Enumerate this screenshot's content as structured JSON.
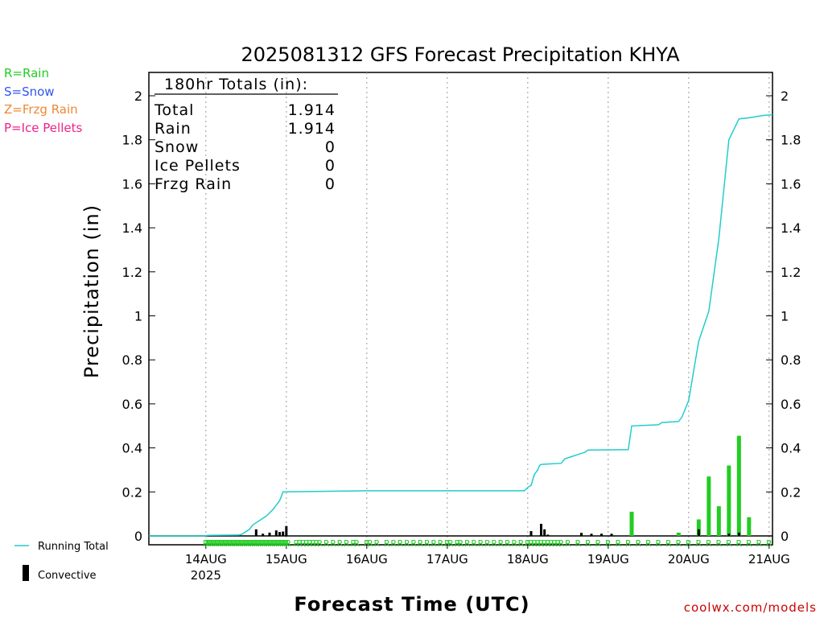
{
  "chart_data": {
    "type": "bar+line",
    "title": "2025081312 GFS Forecast Precipitation KHYA",
    "xlabel": "Forecast Time (UTC)",
    "ylabel": "Precipitation (in)",
    "ylim": [
      0,
      2.1
    ],
    "yticks": [
      "0",
      "0.2",
      "0.4",
      "0.6",
      "0.8",
      "1",
      "1.2",
      "1.4",
      "1.6",
      "1.8",
      "2"
    ],
    "x_range_hours": [
      -5,
      181
    ],
    "day_ticks": [
      {
        "label": "14AUG",
        "hour": 12
      },
      {
        "label": "15AUG",
        "hour": 36
      },
      {
        "label": "16AUG",
        "hour": 60
      },
      {
        "label": "17AUG",
        "hour": 84
      },
      {
        "label": "18AUG",
        "hour": 108
      },
      {
        "label": "19AUG",
        "hour": 132
      },
      {
        "label": "20AUG",
        "hour": 156
      },
      {
        "label": "21AUG",
        "hour": 180
      }
    ],
    "year_label": "2025",
    "totals_box": {
      "header": "180hr Totals (in):",
      "rows": [
        {
          "label": "Total",
          "value": "1.914"
        },
        {
          "label": "Rain",
          "value": "1.914"
        },
        {
          "label": "Snow",
          "value": "0"
        },
        {
          "label": "Ice Pellets",
          "value": "0"
        },
        {
          "label": "Frzg Rain",
          "value": "0"
        }
      ]
    },
    "ptype_legend": [
      {
        "text": "R=Rain",
        "color": "#22cc22"
      },
      {
        "text": "S=Snow",
        "color": "#3355ee"
      },
      {
        "text": "Z=Frzg Rain",
        "color": "#ee8833"
      },
      {
        "text": "P=Ice Pellets",
        "color": "#ee2288"
      }
    ],
    "series_legend": [
      {
        "name": "Running Total",
        "color": "#22cccc",
        "kind": "line"
      },
      {
        "name": "Convective",
        "color": "#000000",
        "kind": "bar"
      }
    ],
    "running_total": [
      [
        -5,
        0
      ],
      [
        12,
        0
      ],
      [
        12.5,
        0.003
      ],
      [
        22,
        0.004
      ],
      [
        23,
        0.01
      ],
      [
        25,
        0.03
      ],
      [
        26,
        0.05
      ],
      [
        28,
        0.07
      ],
      [
        30,
        0.09
      ],
      [
        32,
        0.12
      ],
      [
        34,
        0.16
      ],
      [
        35,
        0.2
      ],
      [
        60,
        0.205
      ],
      [
        107,
        0.205
      ],
      [
        108,
        0.22
      ],
      [
        109,
        0.23
      ],
      [
        110,
        0.28
      ],
      [
        111,
        0.3
      ],
      [
        111.5,
        0.32
      ],
      [
        112,
        0.325
      ],
      [
        118,
        0.33
      ],
      [
        119,
        0.35
      ],
      [
        121,
        0.36
      ],
      [
        123,
        0.37
      ],
      [
        125,
        0.38
      ],
      [
        126,
        0.39
      ],
      [
        138,
        0.392
      ],
      [
        139,
        0.5
      ],
      [
        147,
        0.505
      ],
      [
        148,
        0.515
      ],
      [
        153,
        0.52
      ],
      [
        154,
        0.54
      ],
      [
        156,
        0.615
      ],
      [
        159,
        0.885
      ],
      [
        162,
        1.02
      ],
      [
        165,
        1.35
      ],
      [
        168,
        1.8
      ],
      [
        171,
        1.895
      ],
      [
        174,
        1.9
      ],
      [
        178,
        1.91
      ],
      [
        181,
        1.914
      ]
    ],
    "rain_bars": [
      {
        "hour": 139,
        "value": 0.11
      },
      {
        "hour": 153,
        "value": 0.015
      },
      {
        "hour": 159,
        "value": 0.075
      },
      {
        "hour": 162,
        "value": 0.27
      },
      {
        "hour": 165,
        "value": 0.135
      },
      {
        "hour": 168,
        "value": 0.32
      },
      {
        "hour": 171,
        "value": 0.455
      },
      {
        "hour": 174,
        "value": 0.085
      }
    ],
    "convective_bars": [
      {
        "hour": 22,
        "value": 0.006
      },
      {
        "hour": 27,
        "value": 0.03
      },
      {
        "hour": 29,
        "value": 0.01
      },
      {
        "hour": 31,
        "value": 0.015
      },
      {
        "hour": 33,
        "value": 0.025
      },
      {
        "hour": 34,
        "value": 0.018
      },
      {
        "hour": 35,
        "value": 0.02
      },
      {
        "hour": 36,
        "value": 0.045
      },
      {
        "hour": 109,
        "value": 0.022
      },
      {
        "hour": 112,
        "value": 0.055
      },
      {
        "hour": 113,
        "value": 0.03
      },
      {
        "hour": 114,
        "value": 0.006
      },
      {
        "hour": 124,
        "value": 0.014
      },
      {
        "hour": 127,
        "value": 0.01
      },
      {
        "hour": 130,
        "value": 0.01
      },
      {
        "hour": 133,
        "value": 0.01
      },
      {
        "hour": 159,
        "value": 0.03
      },
      {
        "hour": 168,
        "value": 0.01
      },
      {
        "hour": 171,
        "value": 0.015
      }
    ],
    "ptype_marks": {
      "char": "R",
      "dense_hours_start": 12,
      "dense_hours_end": 37,
      "dense_step": 0.6,
      "sparse_hours": [
        39,
        40,
        41,
        42,
        43,
        44,
        45,
        46,
        48,
        50,
        52,
        54,
        56,
        57,
        60,
        61,
        63,
        66,
        68,
        70,
        72,
        74,
        76,
        78,
        80,
        82,
        84,
        85,
        87,
        88,
        90,
        92,
        94,
        96,
        98,
        100,
        102,
        104,
        106,
        108,
        109,
        110,
        111,
        112,
        113,
        114,
        115,
        116,
        117,
        118,
        120,
        123,
        126,
        129,
        132,
        135,
        138,
        141,
        144,
        147,
        150,
        153,
        156,
        159,
        162,
        165,
        168,
        171,
        174,
        177,
        180
      ]
    },
    "grid": true
  },
  "footer": {
    "credit": "coolwx.com/models"
  }
}
